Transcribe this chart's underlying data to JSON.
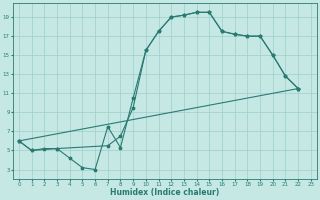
{
  "xlabel": "Humidex (Indice chaleur)",
  "bg_color": "#c5e8e5",
  "grid_color": "#9ecfcb",
  "line_color": "#2a7a72",
  "xlim": [
    -0.5,
    23.5
  ],
  "ylim": [
    2.0,
    20.5
  ],
  "xticks": [
    0,
    1,
    2,
    3,
    4,
    5,
    6,
    7,
    8,
    9,
    10,
    11,
    12,
    13,
    14,
    15,
    16,
    17,
    18,
    19,
    20,
    21,
    22,
    23
  ],
  "yticks": [
    3,
    5,
    7,
    9,
    11,
    13,
    15,
    17,
    19
  ],
  "curve1_x": [
    0,
    1,
    2,
    3,
    4,
    5,
    6,
    7,
    8,
    9,
    10,
    11,
    12,
    13,
    14,
    15,
    16,
    17,
    18,
    19,
    20,
    21,
    22
  ],
  "curve1_y": [
    6.0,
    5.0,
    5.2,
    5.2,
    4.2,
    3.2,
    3.0,
    7.5,
    5.3,
    10.5,
    15.5,
    17.5,
    19.0,
    19.2,
    19.5,
    19.5,
    17.5,
    17.2,
    17.0,
    17.0,
    15.0,
    12.8,
    11.5
  ],
  "curve2_x": [
    0,
    1,
    3,
    7,
    8,
    9,
    10,
    11,
    12,
    13,
    14,
    15,
    16,
    17,
    18,
    19,
    20,
    21,
    22
  ],
  "curve2_y": [
    6.0,
    5.0,
    5.2,
    5.5,
    6.5,
    9.5,
    15.5,
    17.5,
    19.0,
    19.2,
    19.5,
    19.5,
    17.5,
    17.2,
    17.0,
    17.0,
    15.0,
    12.8,
    11.5
  ],
  "curve3_x": [
    0,
    22
  ],
  "curve3_y": [
    6.0,
    11.5
  ]
}
